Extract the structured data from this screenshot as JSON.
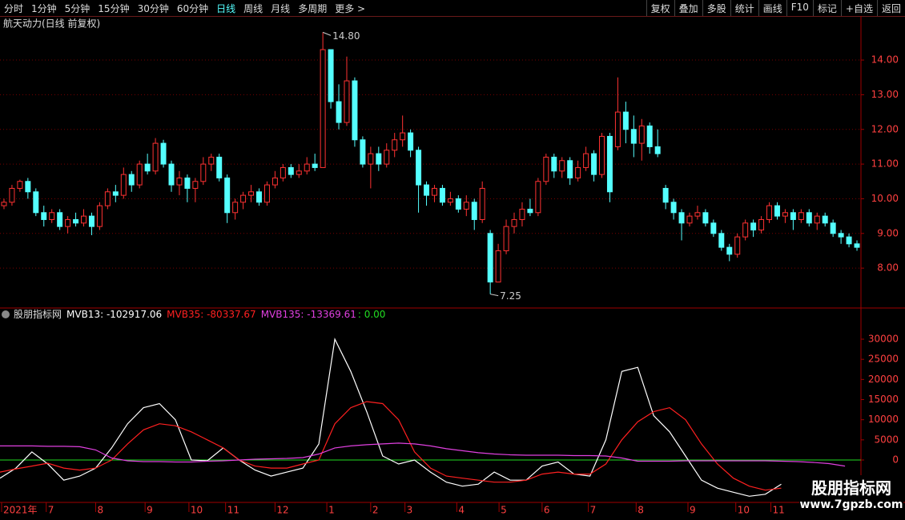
{
  "toolbar": {
    "tabs": [
      "分时",
      "1分钟",
      "5分钟",
      "15分钟",
      "30分钟",
      "60分钟",
      "日线",
      "周线",
      "月线",
      "多周期",
      "更多 >"
    ],
    "active_tab": 6,
    "buttons": [
      "复权",
      "叠加",
      "多股",
      "统计",
      "画线",
      "F10",
      "标记",
      "+自选",
      "返回"
    ]
  },
  "watermark": {
    "title": "股朋指标网",
    "url": "www.7gpzb.com"
  },
  "chart_data": [
    {
      "type": "candlestick",
      "title": "航天动力(日线 前复权)",
      "up_color": "#ff3232",
      "down_color": "#54ffff",
      "grid": true,
      "ylim": [
        6.85,
        15.27
      ],
      "yticks": [
        {
          "value": 8,
          "label": "8.00"
        },
        {
          "value": 9,
          "label": "9.00"
        },
        {
          "value": 10,
          "label": "10.00"
        },
        {
          "value": 11,
          "label": "11.00"
        },
        {
          "value": 12,
          "label": "12.00"
        },
        {
          "value": 13,
          "label": "13.00"
        },
        {
          "value": 14,
          "label": "14.00"
        }
      ],
      "high_label": "14.80",
      "low_label": "7.25",
      "ohlc": [
        [
          9.8,
          9.9,
          10.0,
          9.7
        ],
        [
          9.9,
          10.3,
          10.4,
          9.8
        ],
        [
          10.3,
          10.5,
          10.55,
          10.2
        ],
        [
          10.5,
          10.2,
          10.6,
          10.0
        ],
        [
          10.2,
          9.6,
          10.3,
          9.5
        ],
        [
          9.6,
          9.4,
          9.8,
          9.2
        ],
        [
          9.4,
          9.6,
          9.7,
          9.3
        ],
        [
          9.6,
          9.2,
          9.7,
          9.1
        ],
        [
          9.2,
          9.4,
          9.5,
          9.0
        ],
        [
          9.4,
          9.3,
          9.6,
          9.2
        ],
        [
          9.3,
          9.5,
          9.7,
          9.2
        ],
        [
          9.5,
          9.2,
          9.6,
          8.95
        ],
        [
          9.2,
          9.8,
          9.9,
          9.1
        ],
        [
          9.8,
          10.2,
          10.3,
          9.7
        ],
        [
          10.2,
          10.1,
          10.4,
          9.9
        ],
        [
          10.1,
          10.7,
          10.9,
          10.0
        ],
        [
          10.7,
          10.4,
          10.8,
          10.2
        ],
        [
          10.4,
          11.0,
          11.1,
          10.3
        ],
        [
          11.0,
          10.8,
          11.3,
          10.7
        ],
        [
          10.8,
          11.6,
          11.75,
          10.7
        ],
        [
          11.6,
          11.0,
          11.7,
          10.9
        ],
        [
          11.0,
          10.4,
          11.1,
          10.2
        ],
        [
          10.4,
          10.6,
          10.8,
          10.1
        ],
        [
          10.6,
          10.3,
          10.7,
          9.9
        ],
        [
          10.3,
          10.5,
          10.6,
          9.9
        ],
        [
          10.5,
          11.0,
          11.2,
          10.4
        ],
        [
          11.0,
          11.2,
          11.3,
          10.8
        ],
        [
          11.2,
          10.6,
          11.3,
          10.5
        ],
        [
          10.6,
          9.6,
          10.7,
          9.3
        ],
        [
          9.6,
          9.9,
          10.0,
          9.4
        ],
        [
          9.9,
          10.1,
          10.2,
          9.7
        ],
        [
          10.1,
          10.2,
          10.4,
          9.9
        ],
        [
          10.2,
          9.9,
          10.3,
          9.8
        ],
        [
          9.9,
          10.4,
          10.5,
          9.8
        ],
        [
          10.4,
          10.6,
          10.8,
          10.3
        ],
        [
          10.6,
          10.9,
          11.0,
          10.5
        ],
        [
          10.9,
          10.7,
          11.0,
          10.6
        ],
        [
          10.7,
          10.8,
          11.0,
          10.6
        ],
        [
          10.8,
          11.0,
          11.2,
          10.7
        ],
        [
          11.0,
          10.9,
          11.3,
          10.8
        ],
        [
          10.9,
          14.3,
          14.8,
          10.9
        ],
        [
          14.3,
          12.8,
          14.0,
          12.6
        ],
        [
          12.8,
          12.2,
          13.3,
          12.0
        ],
        [
          12.2,
          13.4,
          14.1,
          12.1
        ],
        [
          13.4,
          11.7,
          13.5,
          11.5
        ],
        [
          11.7,
          11.0,
          11.8,
          10.9
        ],
        [
          11.0,
          11.3,
          11.5,
          10.3
        ],
        [
          11.3,
          11.0,
          11.5,
          10.8
        ],
        [
          11.0,
          11.4,
          11.6,
          10.9
        ],
        [
          11.4,
          11.7,
          11.9,
          11.2
        ],
        [
          11.7,
          11.9,
          12.4,
          11.5
        ],
        [
          11.9,
          11.4,
          12.0,
          11.2
        ],
        [
          11.4,
          10.4,
          11.5,
          9.6
        ],
        [
          10.4,
          10.1,
          10.5,
          9.8
        ],
        [
          10.1,
          10.3,
          10.4,
          9.9
        ],
        [
          10.3,
          9.9,
          10.4,
          9.8
        ],
        [
          9.9,
          10.0,
          10.2,
          9.8
        ],
        [
          10.0,
          9.7,
          10.1,
          9.6
        ],
        [
          9.7,
          9.9,
          10.1,
          9.5
        ],
        [
          9.9,
          9.4,
          10.0,
          9.1
        ],
        [
          9.4,
          10.3,
          10.5,
          9.3
        ],
        [
          9.0,
          7.6,
          9.1,
          7.25
        ],
        [
          7.6,
          8.5,
          8.7,
          7.6
        ],
        [
          8.5,
          9.2,
          9.4,
          8.4
        ],
        [
          9.2,
          9.4,
          9.6,
          9.0
        ],
        [
          9.4,
          9.7,
          9.9,
          9.2
        ],
        [
          9.7,
          9.6,
          10.0,
          9.5
        ],
        [
          9.6,
          10.5,
          10.6,
          9.5
        ],
        [
          10.5,
          11.2,
          11.3,
          10.4
        ],
        [
          11.2,
          10.8,
          11.3,
          10.6
        ],
        [
          10.8,
          11.1,
          11.2,
          10.6
        ],
        [
          11.1,
          10.6,
          11.2,
          10.4
        ],
        [
          10.6,
          10.9,
          11.1,
          10.5
        ],
        [
          10.9,
          11.3,
          11.5,
          10.8
        ],
        [
          11.3,
          10.7,
          11.4,
          10.5
        ],
        [
          10.7,
          11.8,
          11.9,
          10.6
        ],
        [
          11.8,
          10.2,
          11.9,
          9.9
        ],
        [
          11.5,
          12.5,
          13.5,
          11.4
        ],
        [
          12.5,
          12.0,
          12.8,
          11.6
        ],
        [
          12.0,
          11.6,
          12.4,
          11.2
        ],
        [
          11.6,
          12.1,
          12.3,
          11.1
        ],
        [
          12.1,
          11.5,
          12.2,
          11.3
        ],
        [
          11.5,
          11.3,
          12.0,
          11.2
        ],
        [
          10.3,
          9.9,
          10.4,
          9.7
        ],
        [
          9.9,
          9.6,
          10.0,
          9.4
        ],
        [
          9.6,
          9.3,
          9.7,
          8.8
        ],
        [
          9.3,
          9.5,
          9.6,
          9.2
        ],
        [
          9.5,
          9.6,
          9.8,
          9.4
        ],
        [
          9.6,
          9.3,
          9.7,
          9.2
        ],
        [
          9.3,
          9.0,
          9.4,
          8.9
        ],
        [
          9.0,
          8.6,
          9.1,
          8.5
        ],
        [
          8.6,
          8.4,
          8.7,
          8.2
        ],
        [
          8.4,
          8.9,
          9.0,
          8.3
        ],
        [
          8.9,
          9.3,
          9.4,
          8.8
        ],
        [
          9.3,
          9.1,
          9.4,
          8.9
        ],
        [
          9.1,
          9.4,
          9.5,
          9.0
        ],
        [
          9.4,
          9.8,
          9.9,
          9.3
        ],
        [
          9.8,
          9.5,
          9.9,
          9.4
        ],
        [
          9.5,
          9.6,
          9.7,
          9.3
        ],
        [
          9.6,
          9.4,
          9.7,
          9.1
        ],
        [
          9.4,
          9.6,
          9.7,
          9.3
        ],
        [
          9.6,
          9.3,
          9.7,
          9.2
        ],
        [
          9.3,
          9.5,
          9.6,
          9.1
        ],
        [
          9.5,
          9.3,
          9.6,
          9.2
        ],
        [
          9.3,
          9.0,
          9.4,
          8.9
        ],
        [
          9.0,
          8.9,
          9.1,
          8.7
        ],
        [
          8.9,
          8.7,
          9.0,
          8.6
        ],
        [
          8.7,
          8.6,
          8.8,
          8.5
        ]
      ],
      "xticks": [
        {
          "value": -0.3,
          "label": "2021年"
        },
        {
          "value": 5.3,
          "label": "7"
        },
        {
          "value": 11.5,
          "label": "8"
        },
        {
          "value": 17.7,
          "label": "9"
        },
        {
          "value": 23.2,
          "label": "10"
        },
        {
          "value": 27.8,
          "label": "11"
        },
        {
          "value": 34,
          "label": "12"
        },
        {
          "value": 40.5,
          "label": "1"
        },
        {
          "value": 46,
          "label": "2"
        },
        {
          "value": 50.3,
          "label": "3"
        },
        {
          "value": 56.8,
          "label": "4"
        },
        {
          "value": 62.1,
          "label": "5"
        },
        {
          "value": 67.5,
          "label": "6"
        },
        {
          "value": 73.3,
          "label": "7"
        },
        {
          "value": 79.3,
          "label": "8"
        },
        {
          "value": 85.8,
          "label": "9"
        },
        {
          "value": 91.8,
          "label": "10"
        },
        {
          "value": 96.2,
          "label": "11"
        }
      ]
    },
    {
      "type": "line",
      "title": "股朋指标网",
      "ylim": [
        -10530,
        34770
      ],
      "yticks": [
        0,
        5000,
        10000,
        15000,
        20000,
        25000,
        30000
      ],
      "zero_line": {
        "value": 0,
        "label": ": 0.00",
        "color": "#22dd22"
      },
      "x": [
        -0.5,
        1.5,
        3.5,
        5.5,
        7.5,
        9.5,
        11.5,
        13.5,
        15.5,
        17.5,
        19.5,
        21.5,
        23.5,
        25.5,
        27.5,
        29.5,
        31.5,
        33.5,
        35.5,
        37.5,
        39.5,
        41.5,
        43.5,
        45.5,
        47.5,
        49.5,
        51.5,
        53.5,
        55.5,
        57.5,
        59.5,
        61.5,
        63.5,
        65.5,
        67.5,
        69.5,
        71.5,
        73.5,
        75.5,
        77.5,
        79.5,
        81.5,
        83.5,
        85.5,
        87.5,
        89.5,
        91.5,
        93.5,
        95.5,
        97.5,
        99.5,
        101.5,
        103.5,
        105.5
      ],
      "series": [
        {
          "name": "MVB13: -102917.06",
          "color": "#ffffff",
          "values": [
            -4500,
            -2000,
            2000,
            -1000,
            -5000,
            -4000,
            -2000,
            3000,
            9000,
            13000,
            14000,
            10000,
            0,
            -200,
            3000,
            0,
            -2500,
            -4000,
            -3000,
            -2000,
            4000,
            30000,
            22000,
            12000,
            1000,
            -1000,
            0,
            -3000,
            -5500,
            -6500,
            -6000,
            -3000,
            -5000,
            -5000,
            -1500,
            -500,
            -3500,
            -4000,
            5000,
            22000,
            23000,
            11000,
            7000,
            1000,
            -5000,
            -7000,
            -8000,
            -9000,
            -8500,
            -6000,
            null,
            null,
            null,
            null
          ]
        },
        {
          "name": "MVB35: -80337.67",
          "color": "#ff2020",
          "values": [
            -3000,
            -2200,
            -1500,
            -800,
            -2000,
            -2500,
            -2000,
            0,
            4000,
            7500,
            9000,
            8500,
            7000,
            5000,
            3000,
            0,
            -1500,
            -2000,
            -2000,
            -1000,
            0,
            9000,
            13000,
            14500,
            14000,
            10000,
            2000,
            -2000,
            -4000,
            -4500,
            -5000,
            -5500,
            -5500,
            -5000,
            -3500,
            -3000,
            -3500,
            -3500,
            -1000,
            5000,
            9500,
            12000,
            13000,
            10000,
            4000,
            -1000,
            -4500,
            -6500,
            -7500,
            -7000,
            null,
            null,
            null,
            null
          ]
        },
        {
          "name": "MVB135: -13369.61",
          "color": "#e040e0",
          "values": [
            3500,
            3500,
            3500,
            3400,
            3400,
            3300,
            2500,
            500,
            -200,
            -400,
            -400,
            -500,
            -500,
            -300,
            -200,
            0,
            200,
            300,
            400,
            600,
            1500,
            3000,
            3500,
            3800,
            4000,
            4200,
            4000,
            3500,
            2800,
            2300,
            1800,
            1500,
            1300,
            1200,
            1200,
            1200,
            1100,
            1100,
            1000,
            500,
            -300,
            -300,
            -300,
            -200,
            -200,
            -200,
            -200,
            -200,
            -200,
            -300,
            -400,
            -600,
            -900,
            -1500
          ]
        }
      ]
    }
  ]
}
